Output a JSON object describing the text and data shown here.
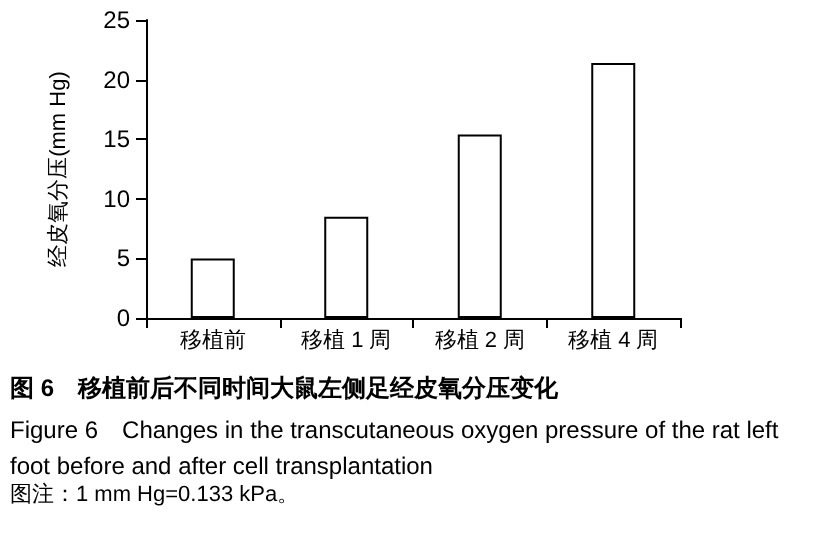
{
  "chart_data": {
    "type": "bar",
    "title": "图 6　移植前后不同时间大鼠左侧足经皮氧分压变化",
    "subtitle": "Figure 6　Changes in the transcutaneous oxygen pressure of the rat left foot before and after cell transplantation",
    "ylabel": "经皮氧分压(mm Hg)",
    "annotations": [
      "图注：1 mm Hg=0.133 kPa。"
    ],
    "categories": [
      "移植前",
      "移植 1 周",
      "移植 2 周",
      "移植 4 周"
    ],
    "values": [
      5.0,
      8.5,
      15.4,
      21.4
    ],
    "color": "#ffffff",
    "ylim": [
      0,
      25
    ],
    "yticks": [
      0,
      5,
      10,
      15,
      20,
      25
    ],
    "grid": false
  }
}
